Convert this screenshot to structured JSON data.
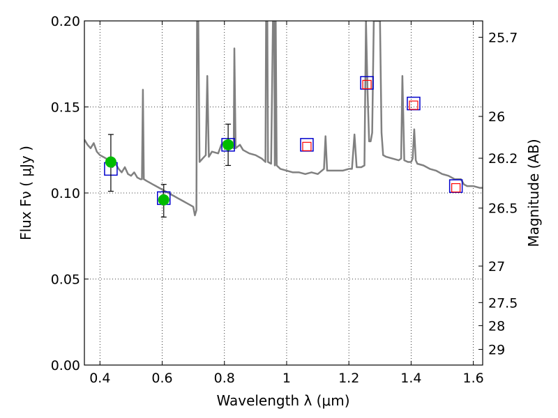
{
  "chart_data": {
    "type": "line",
    "xlabel": "Wavelength  λ (μm)",
    "ylabel": "Flux  Fν  ( μJy )",
    "y2label": "Magnitude (AB)",
    "xlim": [
      0.35,
      1.63
    ],
    "ylim": [
      0.0,
      0.2
    ],
    "grid": true,
    "x_ticks": [
      0.4,
      0.6,
      0.8,
      1.0,
      1.2,
      1.4,
      1.6
    ],
    "x_tick_labels": [
      "0.4",
      "0.6",
      "0.8",
      "1",
      "1.2",
      "1.4",
      "1.6"
    ],
    "y_ticks": [
      0.0,
      0.05,
      0.1,
      0.15,
      0.2
    ],
    "y_tick_labels": [
      "0.00",
      "0.05",
      "0.10",
      "0.15",
      "0.20"
    ],
    "y2_ticks": [
      {
        "label": "25.7",
        "flux": 0.1905
      },
      {
        "label": "26",
        "flux": 0.1445
      },
      {
        "label": "26.2",
        "flux": 0.1202
      },
      {
        "label": "26.5",
        "flux": 0.0912
      },
      {
        "label": "27",
        "flux": 0.0575
      },
      {
        "label": "27.5",
        "flux": 0.0363
      },
      {
        "label": "28",
        "flux": 0.0229
      },
      {
        "label": "29",
        "flux": 0.0091
      }
    ],
    "sed_color": "#808080",
    "spectrum": [
      [
        0.35,
        0.131
      ],
      [
        0.36,
        0.128
      ],
      [
        0.37,
        0.126
      ],
      [
        0.38,
        0.129
      ],
      [
        0.39,
        0.124
      ],
      [
        0.4,
        0.122
      ],
      [
        0.41,
        0.121
      ],
      [
        0.42,
        0.12
      ],
      [
        0.43,
        0.118
      ],
      [
        0.44,
        0.115
      ],
      [
        0.45,
        0.117
      ],
      [
        0.46,
        0.114
      ],
      [
        0.47,
        0.112
      ],
      [
        0.48,
        0.115
      ],
      [
        0.49,
        0.111
      ],
      [
        0.5,
        0.11
      ],
      [
        0.51,
        0.112
      ],
      [
        0.52,
        0.109
      ],
      [
        0.53,
        0.108
      ],
      [
        0.535,
        0.108
      ],
      [
        0.538,
        0.16
      ],
      [
        0.541,
        0.108
      ],
      [
        0.55,
        0.107
      ],
      [
        0.56,
        0.106
      ],
      [
        0.57,
        0.105
      ],
      [
        0.58,
        0.104
      ],
      [
        0.59,
        0.103
      ],
      [
        0.6,
        0.102
      ],
      [
        0.61,
        0.101
      ],
      [
        0.62,
        0.1
      ],
      [
        0.63,
        0.099
      ],
      [
        0.64,
        0.098
      ],
      [
        0.65,
        0.097
      ],
      [
        0.66,
        0.096
      ],
      [
        0.67,
        0.095
      ],
      [
        0.68,
        0.094
      ],
      [
        0.69,
        0.093
      ],
      [
        0.7,
        0.092
      ],
      [
        0.705,
        0.087
      ],
      [
        0.71,
        0.09
      ],
      [
        0.712,
        0.2
      ],
      [
        0.716,
        0.2
      ],
      [
        0.72,
        0.118
      ],
      [
        0.73,
        0.12
      ],
      [
        0.74,
        0.122
      ],
      [
        0.745,
        0.168
      ],
      [
        0.75,
        0.121
      ],
      [
        0.76,
        0.124
      ],
      [
        0.78,
        0.123
      ],
      [
        0.79,
        0.128
      ],
      [
        0.8,
        0.13
      ],
      [
        0.81,
        0.128
      ],
      [
        0.82,
        0.127
      ],
      [
        0.83,
        0.126
      ],
      [
        0.832,
        0.184
      ],
      [
        0.836,
        0.126
      ],
      [
        0.85,
        0.128
      ],
      [
        0.86,
        0.125
      ],
      [
        0.88,
        0.123
      ],
      [
        0.9,
        0.122
      ],
      [
        0.92,
        0.12
      ],
      [
        0.932,
        0.118
      ],
      [
        0.934,
        0.2
      ],
      [
        0.938,
        0.2
      ],
      [
        0.94,
        0.118
      ],
      [
        0.95,
        0.117
      ],
      [
        0.956,
        0.2
      ],
      [
        0.96,
        0.2
      ],
      [
        0.962,
        0.116
      ],
      [
        0.965,
        0.2
      ],
      [
        0.968,
        0.116
      ],
      [
        0.98,
        0.114
      ],
      [
        1.0,
        0.113
      ],
      [
        1.02,
        0.112
      ],
      [
        1.04,
        0.112
      ],
      [
        1.06,
        0.111
      ],
      [
        1.08,
        0.112
      ],
      [
        1.1,
        0.111
      ],
      [
        1.12,
        0.114
      ],
      [
        1.125,
        0.133
      ],
      [
        1.13,
        0.113
      ],
      [
        1.15,
        0.113
      ],
      [
        1.18,
        0.113
      ],
      [
        1.2,
        0.114
      ],
      [
        1.21,
        0.114
      ],
      [
        1.218,
        0.134
      ],
      [
        1.225,
        0.115
      ],
      [
        1.24,
        0.115
      ],
      [
        1.25,
        0.116
      ],
      [
        1.255,
        0.2
      ],
      [
        1.26,
        0.16
      ],
      [
        1.265,
        0.13
      ],
      [
        1.27,
        0.13
      ],
      [
        1.275,
        0.135
      ],
      [
        1.28,
        0.2
      ],
      [
        1.29,
        0.2
      ],
      [
        1.3,
        0.2
      ],
      [
        1.305,
        0.135
      ],
      [
        1.31,
        0.122
      ],
      [
        1.32,
        0.121
      ],
      [
        1.34,
        0.12
      ],
      [
        1.36,
        0.119
      ],
      [
        1.368,
        0.12
      ],
      [
        1.372,
        0.168
      ],
      [
        1.378,
        0.119
      ],
      [
        1.39,
        0.118
      ],
      [
        1.4,
        0.118
      ],
      [
        1.405,
        0.12
      ],
      [
        1.41,
        0.137
      ],
      [
        1.415,
        0.119
      ],
      [
        1.42,
        0.117
      ],
      [
        1.44,
        0.116
      ],
      [
        1.46,
        0.114
      ],
      [
        1.48,
        0.113
      ],
      [
        1.5,
        0.111
      ],
      [
        1.52,
        0.11
      ],
      [
        1.54,
        0.108
      ],
      [
        1.56,
        0.108
      ],
      [
        1.57,
        0.105
      ],
      [
        1.58,
        0.104
      ],
      [
        1.6,
        0.104
      ],
      [
        1.62,
        0.103
      ],
      [
        1.63,
        0.103
      ]
    ],
    "model_points": [
      {
        "x": 0.435,
        "y": 0.114
      },
      {
        "x": 0.605,
        "y": 0.097
      },
      {
        "x": 0.812,
        "y": 0.128
      },
      {
        "x": 1.065,
        "y": 0.128
      },
      {
        "x": 1.258,
        "y": 0.164
      },
      {
        "x": 1.408,
        "y": 0.152
      },
      {
        "x": 1.544,
        "y": 0.104
      }
    ],
    "observed_points": [
      {
        "x": 0.435,
        "y": 0.118,
        "err_low": 0.017,
        "err_high": 0.016
      },
      {
        "x": 0.605,
        "y": 0.096,
        "err_low": 0.01,
        "err_high": 0.009
      },
      {
        "x": 0.812,
        "y": 0.128,
        "err_low": 0.012,
        "err_high": 0.012
      }
    ],
    "upper_points": [
      {
        "x": 1.065,
        "y": 0.127
      },
      {
        "x": 1.258,
        "y": 0.163
      },
      {
        "x": 1.408,
        "y": 0.151
      },
      {
        "x": 1.544,
        "y": 0.103
      }
    ],
    "colors": {
      "model_square": "#0000cc",
      "observed_point": "#00bb00",
      "upper_square": "#ff0000",
      "errorbar": "#000000",
      "grid": "#000000"
    }
  }
}
